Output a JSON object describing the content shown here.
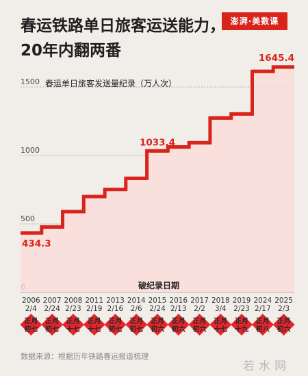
{
  "header": {
    "title": "春运铁路单日旅客运送能力，\n20年内翻两番",
    "logo_text": "澎湃·美数课"
  },
  "chart_data": {
    "type": "line",
    "step": true,
    "title": "春运铁路单日旅客运送能力，20年内翻两番",
    "ylabel": "春运单日旅客发送量纪录（万人次）",
    "xlabel": "破纪录日期",
    "ylim": [
      0,
      1650
    ],
    "yticks": [
      0,
      500,
      1000,
      1500
    ],
    "grid": true,
    "line_color": "#d9241c",
    "fill_color": "#fbdcd8",
    "x": [
      {
        "year": "2006",
        "date": "2/4",
        "lunar": "正月初七"
      },
      {
        "year": "2007",
        "date": "2/24",
        "lunar": "正月初七"
      },
      {
        "year": "2008",
        "date": "2/23",
        "lunar": "正月十七"
      },
      {
        "year": "2011",
        "date": "2/19",
        "lunar": "正月十七"
      },
      {
        "year": "2013",
        "date": "2/16",
        "lunar": "正月初七"
      },
      {
        "year": "2014",
        "date": "2/6",
        "lunar": "正月初七"
      },
      {
        "year": "2015",
        "date": "2/24",
        "lunar": "正月初六"
      },
      {
        "year": "2016",
        "date": "2/13",
        "lunar": "正月初六"
      },
      {
        "year": "2017",
        "date": "2/2",
        "lunar": "正月初六"
      },
      {
        "year": "2018",
        "date": "3/4",
        "lunar": "正月十七"
      },
      {
        "year": "2019",
        "date": "2/23",
        "lunar": "正月十九"
      },
      {
        "year": "2024",
        "date": "2/17",
        "lunar": "正月初八"
      },
      {
        "year": "2025",
        "date": "2/3",
        "lunar": "正月初六"
      }
    ],
    "values": [
      434.3,
      478,
      590,
      700,
      752,
      833,
      1033.4,
      1062,
      1093,
      1274,
      1303,
      1614,
      1645.4
    ],
    "labeled_points": [
      {
        "index": 0,
        "label": "434.3"
      },
      {
        "index": 6,
        "label": "1033.4"
      },
      {
        "index": 12,
        "label": "1645.4"
      }
    ]
  },
  "footer": {
    "source": "数据来源：根据历年铁路春运报道梳理",
    "watermark": "若水网"
  }
}
